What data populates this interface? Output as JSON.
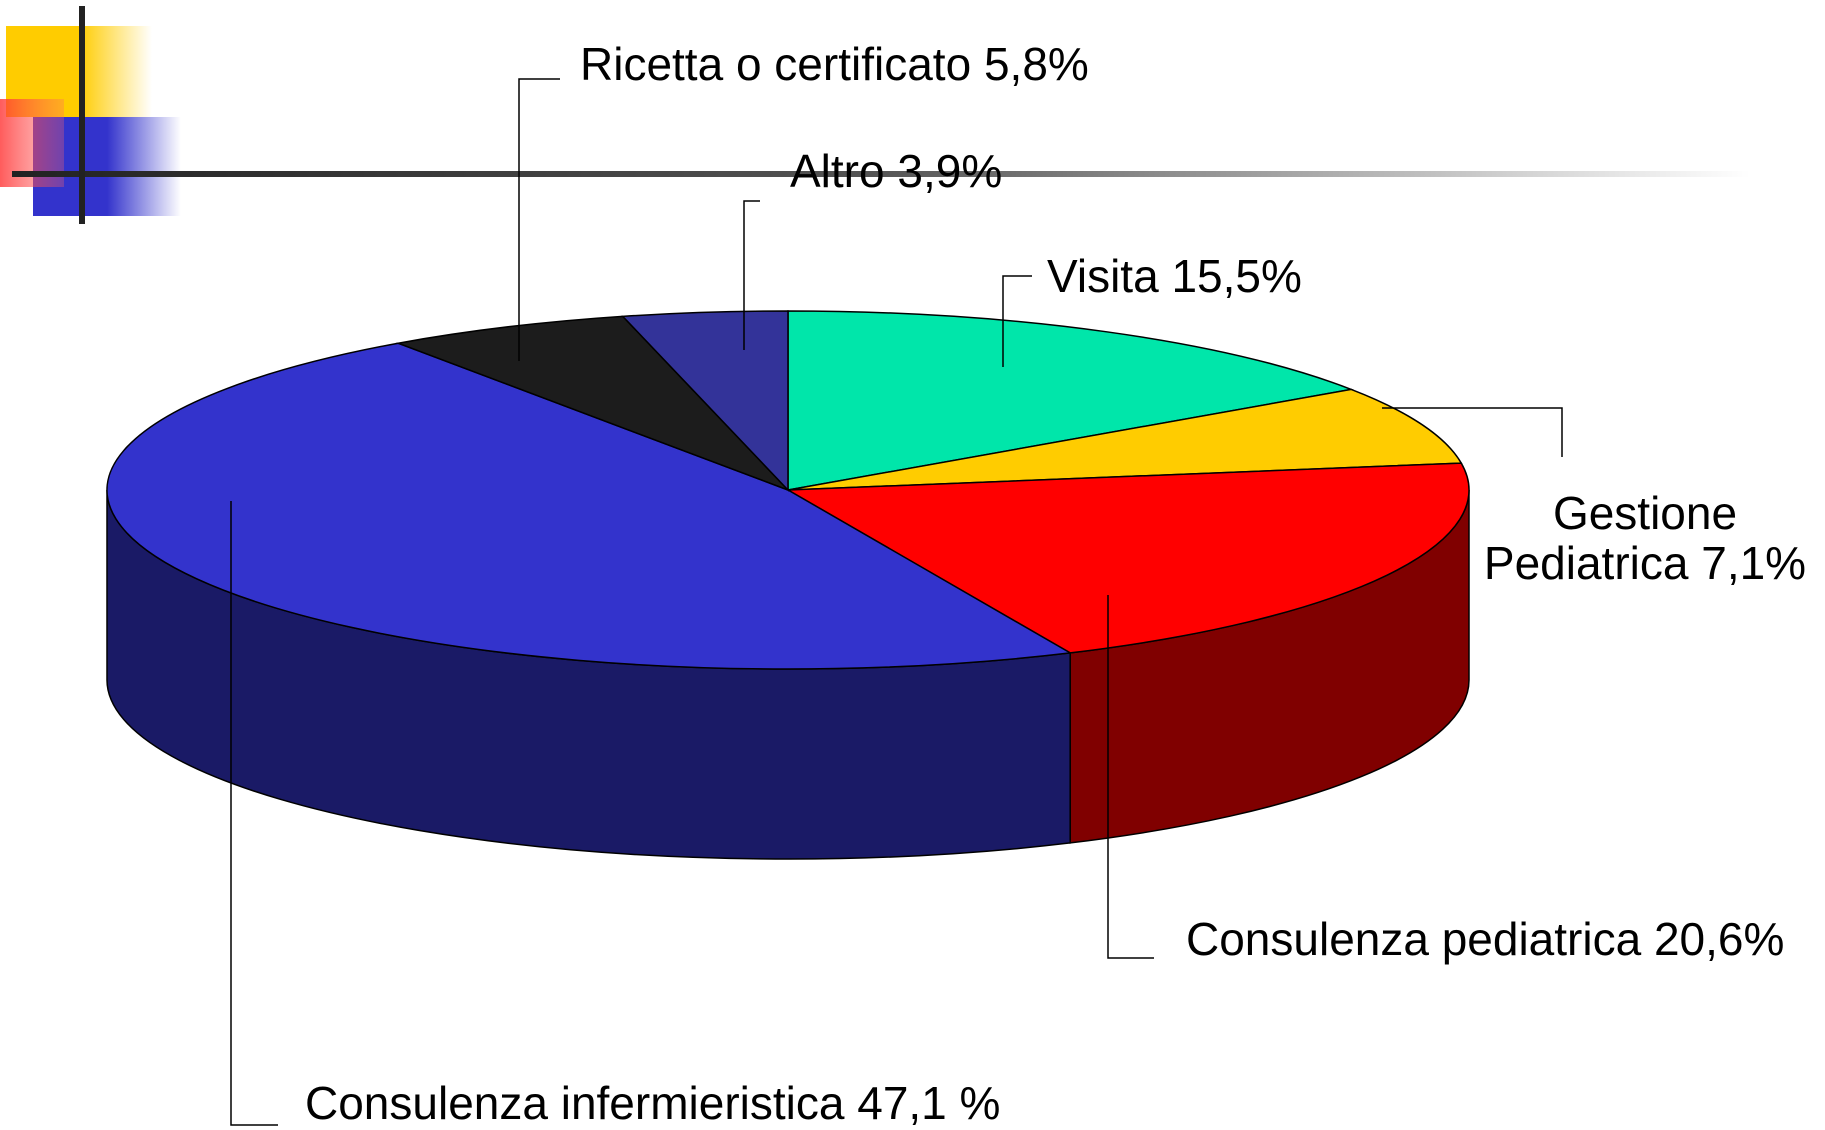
{
  "chart_data": {
    "type": "pie3d",
    "categories": [
      "Visita",
      "Gestione\nPediatrica",
      "Consulenza pediatrica",
      "Consulenza infermieristica",
      "Ricetta o certificato",
      "Altro"
    ],
    "values": [
      15.5,
      7.1,
      20.6,
      47.1,
      5.8,
      3.9
    ],
    "value_labels": [
      "15,5%",
      "7,1%",
      "20,6%",
      "47,1 %",
      "5,8%",
      "3,9%"
    ],
    "colors": [
      "#00e6aa",
      "#ffcc00",
      "#ff0000",
      "#3333cc",
      "#1c1c1c",
      "#333399"
    ],
    "side_colors": [
      "#007355",
      "#806600",
      "#800000",
      "#1a1a66",
      "#0e0e0e",
      "#1a1a4d"
    ]
  }
}
